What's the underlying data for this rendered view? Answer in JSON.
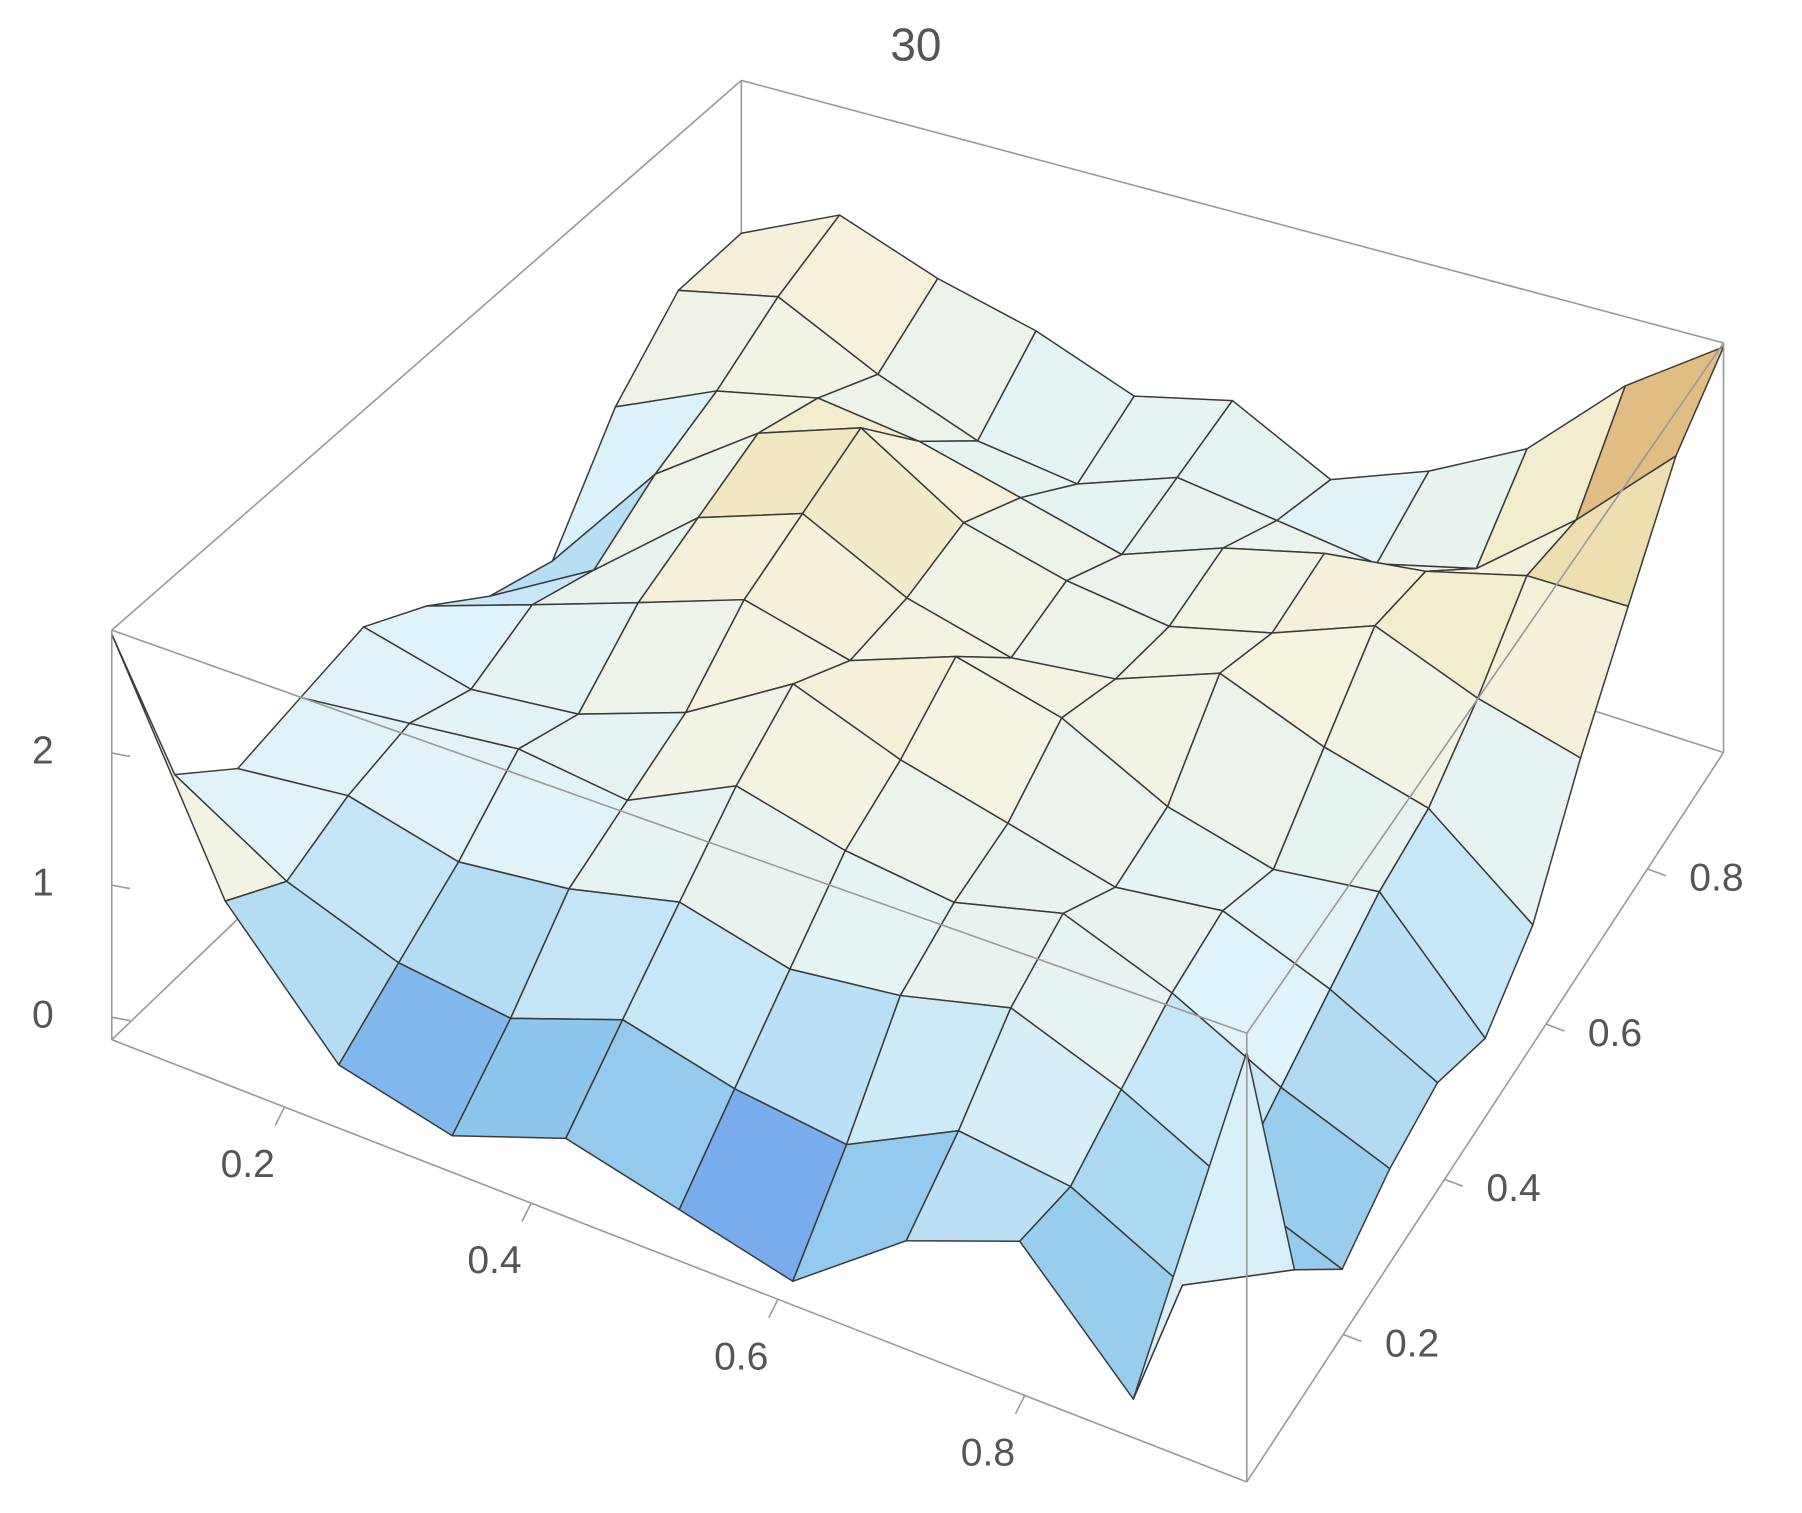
{
  "chart_data": {
    "type": "surface",
    "title": "30",
    "x": [
      0.06,
      0.152,
      0.244,
      0.336,
      0.428,
      0.52,
      0.612,
      0.704,
      0.796,
      0.888,
      0.98
    ],
    "y": [
      0.01,
      0.104,
      0.198,
      0.292,
      0.386,
      0.48,
      0.574,
      0.668,
      0.762,
      0.856,
      0.95
    ],
    "z": [
      [
        2.9,
        1.2,
        0.3,
        0.1,
        0.4,
        0.2,
        0.0,
        0.6,
        0.9,
        0.1,
        2.8
      ],
      [
        1.4,
        0.9,
        0.6,
        0.5,
        0.8,
        0.6,
        0.5,
        0.9,
        0.8,
        0.4,
        0.8
      ],
      [
        1.0,
        1.1,
        0.9,
        1.0,
        1.2,
        1.0,
        1.1,
        1.3,
        1.0,
        0.6,
        0.3
      ],
      [
        1.1,
        1.2,
        1.3,
        1.2,
        1.6,
        1.4,
        1.3,
        1.5,
        1.2,
        0.8,
        0.5
      ],
      [
        1.2,
        1.0,
        1.1,
        1.4,
        1.9,
        1.6,
        1.4,
        1.2,
        1.3,
        1.0,
        0.6
      ],
      [
        0.9,
        1.2,
        1.5,
        1.8,
        1.6,
        1.9,
        1.7,
        1.3,
        1.1,
        1.2,
        0.4
      ],
      [
        0.5,
        1.0,
        1.7,
        2.0,
        1.6,
        1.4,
        1.5,
        1.8,
        1.5,
        1.3,
        0.7
      ],
      [
        0.3,
        1.3,
        1.9,
        2.2,
        1.7,
        1.5,
        1.4,
        1.6,
        1.9,
        1.6,
        1.4
      ],
      [
        1.1,
        1.5,
        1.7,
        1.6,
        1.4,
        1.2,
        1.5,
        1.7,
        1.8,
        2.0,
        2.0
      ],
      [
        1.6,
        1.8,
        1.4,
        1.1,
        1.0,
        1.3,
        1.2,
        1.1,
        1.3,
        1.9,
        2.6
      ],
      [
        1.6,
        2.0,
        1.7,
        1.5,
        1.2,
        1.4,
        1.0,
        1.3,
        1.7,
        2.4,
        2.9
      ]
    ],
    "xlim": [
      0.06,
      0.98
    ],
    "ylim": [
      0.01,
      0.95
    ],
    "zlim": [
      -0.17,
      2.93
    ],
    "xticks": [
      0.2,
      0.4,
      0.6,
      0.8
    ],
    "yticks": [
      0.2,
      0.4,
      0.6,
      0.8
    ],
    "zticks": [
      0,
      1,
      2
    ],
    "colormap": [
      "#2747ee",
      "#8cc6ec",
      "#dff3fa",
      "#f6f3df",
      "#e9d79c",
      "#c9632c"
    ],
    "mesh": true,
    "mesh_color": "#3a3a3a",
    "box_color": "#9a9a9a"
  }
}
